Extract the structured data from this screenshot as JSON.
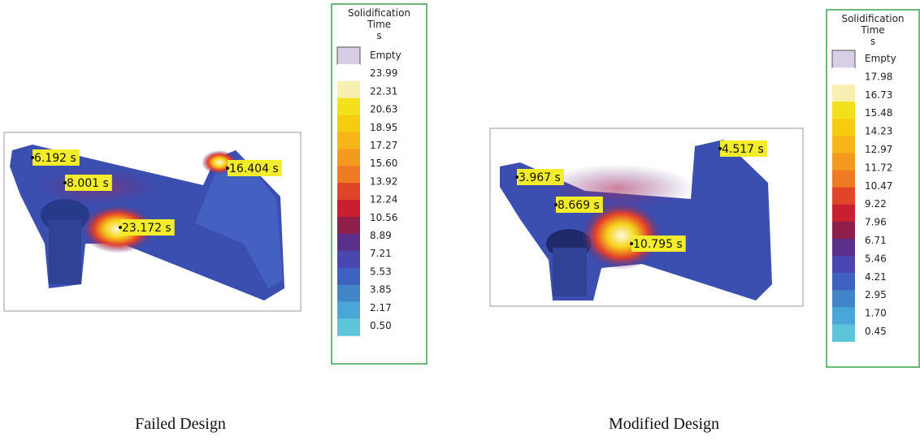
{
  "panels": [
    {
      "caption": "Failed Design",
      "callouts": [
        "6.192 s",
        "8.001 s",
        "16.404 s",
        "23.172 s"
      ],
      "legend": {
        "title": [
          "Solidification",
          "Time",
          "s"
        ],
        "entries": [
          "Empty",
          "23.99",
          "22.31",
          "20.63",
          "18.95",
          "17.27",
          "15.60",
          "13.92",
          "12.24",
          "10.56",
          "8.89",
          "7.21",
          "5.53",
          "3.85",
          "2.17",
          "0.50"
        ]
      }
    },
    {
      "caption": "Modified Design",
      "callouts": [
        "4.517 s",
        "3.967 s",
        "8.669 s",
        "10.795 s"
      ],
      "legend": {
        "title": [
          "Solidification",
          "Time",
          "s"
        ],
        "entries": [
          "Empty",
          "17.98",
          "16.73",
          "15.48",
          "14.23",
          "12.97",
          "11.72",
          "10.47",
          "9.22",
          "7.96",
          "6.71",
          "5.46",
          "4.21",
          "2.95",
          "1.70",
          "0.45"
        ]
      }
    }
  ]
}
